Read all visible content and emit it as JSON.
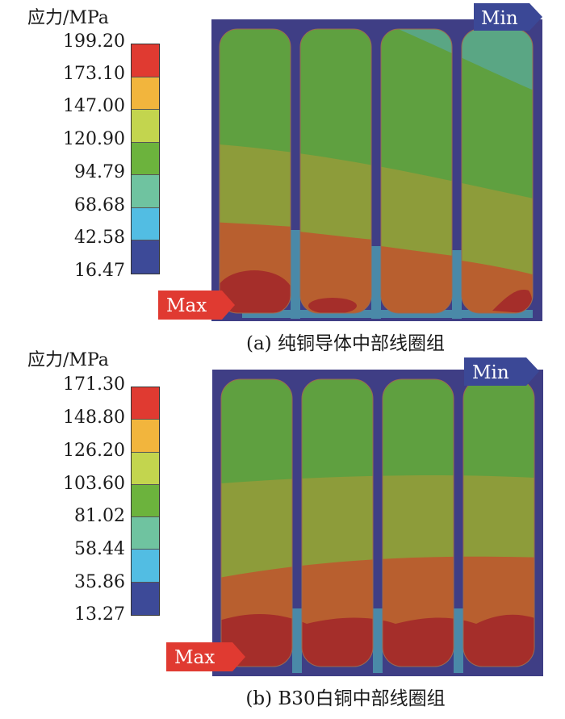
{
  "panels": [
    {
      "caption": "(a) 纯铜导体中部线圈组",
      "legend": {
        "title": "应力/MPa",
        "values": [
          "199.20",
          "173.10",
          "147.00",
          "120.90",
          "94.79",
          "68.68",
          "42.58",
          "16.47"
        ],
        "colors": [
          "#e03a31",
          "#f2b53d",
          "#c3d54e",
          "#6cb33d",
          "#6fc3a0",
          "#52bde3",
          "#3d4a98"
        ]
      },
      "min_label": "Min",
      "max_label": "Max"
    },
    {
      "caption": "(b) B30白铜中部线圈组",
      "legend": {
        "title": "应力/MPa",
        "values": [
          "171.30",
          "148.80",
          "126.20",
          "103.60",
          "81.02",
          "58.44",
          "35.86",
          "13.27"
        ],
        "colors": [
          "#e03a31",
          "#f2b53d",
          "#c3d54e",
          "#6cb33d",
          "#6fc3a0",
          "#52bde3",
          "#3d4a98"
        ]
      },
      "min_label": "Min",
      "max_label": "Max"
    }
  ]
}
